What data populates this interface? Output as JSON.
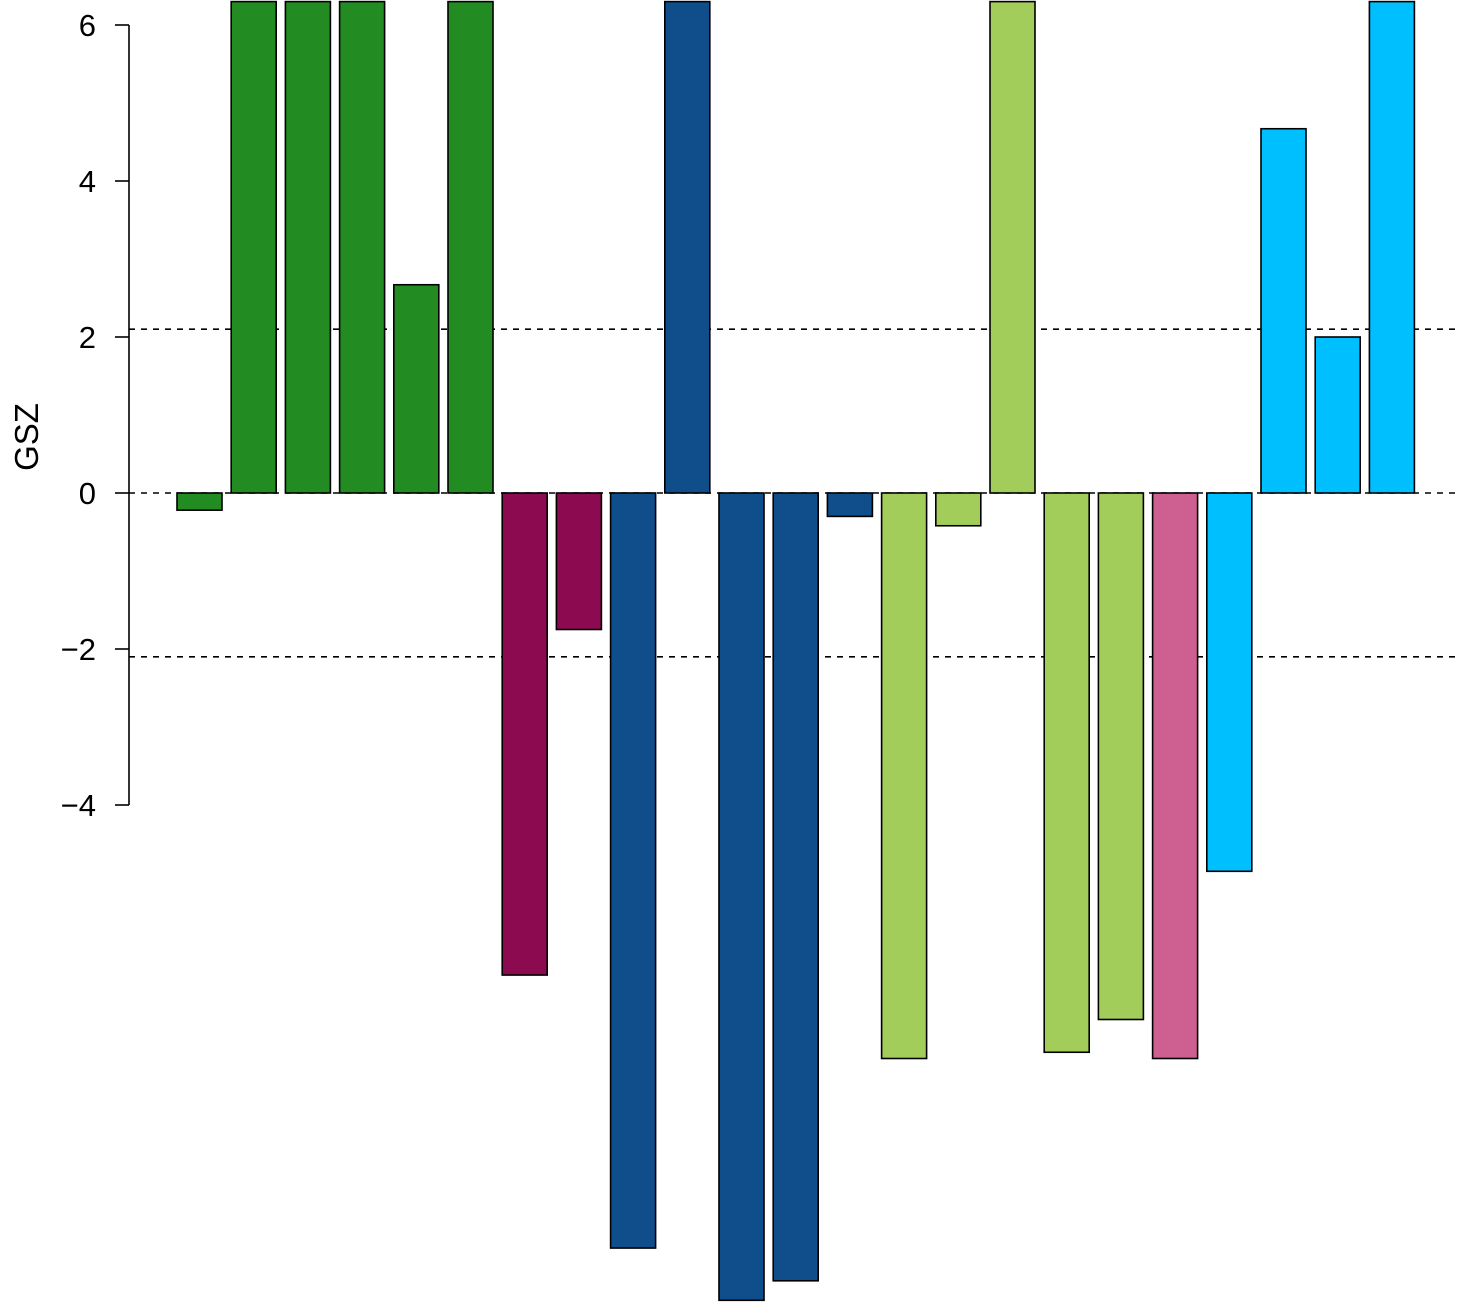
{
  "chart_data": {
    "type": "bar",
    "title": "",
    "xlabel": "",
    "ylabel": "GSZ",
    "ylim": [
      -10.5,
      6.3
    ],
    "yticks": [
      -4,
      -2,
      0,
      2,
      4,
      6
    ],
    "ytick_labels": [
      "−4",
      "−2",
      "0",
      "2",
      "4",
      "6"
    ],
    "reference_lines": [
      2.1,
      0,
      -2.1
    ],
    "grid": false,
    "legend": "none",
    "values": [
      -0.22,
      6.3,
      6.3,
      6.3,
      2.67,
      6.3,
      -6.18,
      -1.75,
      -9.68,
      6.3,
      -10.35,
      -10.1,
      -0.3,
      -7.25,
      -0.42,
      6.3,
      -7.17,
      -6.75,
      -7.25,
      -4.85,
      4.67,
      2.0,
      6.3
    ],
    "colors": [
      "#228B22",
      "#228B22",
      "#228B22",
      "#228B22",
      "#228B22",
      "#228B22",
      "#8B0A50",
      "#8B0A50",
      "#104E8B",
      "#104E8B",
      "#104E8B",
      "#104E8B",
      "#104E8B",
      "#A2CD5A",
      "#A2CD5A",
      "#A2CD5A",
      "#A2CD5A",
      "#A2CD5A",
      "#CD6090",
      "#00BFFF",
      "#00BFFF",
      "#00BFFF",
      "#00BFFF"
    ]
  }
}
